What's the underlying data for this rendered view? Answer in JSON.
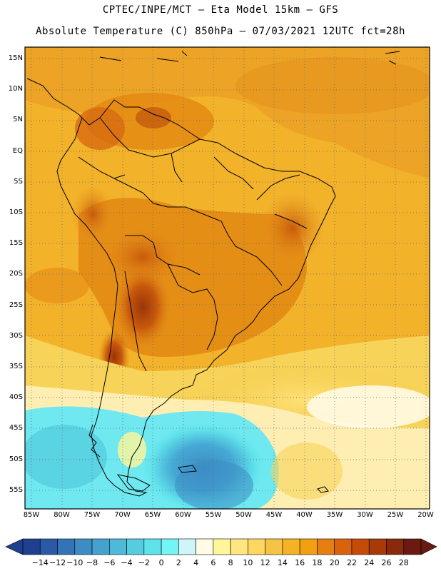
{
  "header": {
    "line1": "CPTEC/INPE/MCT –  Eta Model 15km – GFS",
    "line2": "Absolute Temperature (C) 850hPa – 07/03/2021 12UTC fct=28h"
  },
  "map": {
    "region": "South America",
    "variable": "Absolute Temperature (C) 850hPa",
    "lat_labels": [
      "15N",
      "10N",
      "5N",
      "EQ",
      "5S",
      "10S",
      "15S",
      "20S",
      "25S",
      "30S",
      "35S",
      "40S",
      "45S",
      "50S",
      "55S"
    ],
    "lon_labels": [
      "85W",
      "80W",
      "75W",
      "70W",
      "65W",
      "60W",
      "55W",
      "50W",
      "45W",
      "40W",
      "35W",
      "30W",
      "25W",
      "20W"
    ]
  },
  "colorbar": {
    "labels": [
      "-14",
      "-12",
      "-10",
      "-8",
      "-6",
      "-4",
      "-2",
      "0",
      "2",
      "4",
      "6",
      "8",
      "10",
      "12",
      "14",
      "16",
      "18",
      "20",
      "22",
      "24",
      "26",
      "28"
    ],
    "colors": [
      "#1f3f8f",
      "#2a5aa6",
      "#3473b5",
      "#3d8cc4",
      "#45a2cf",
      "#4eb9d8",
      "#55cde0",
      "#5fe3ea",
      "#73f5f5",
      "#cff5f8",
      "#fffbe6",
      "#fff59b",
      "#ffe680",
      "#ffd760",
      "#f6c445",
      "#f4b324",
      "#f0a010",
      "#e67e10",
      "#d9620c",
      "#c64b09",
      "#a83a08",
      "#8a2a0a",
      "#6a1a10"
    ]
  }
}
